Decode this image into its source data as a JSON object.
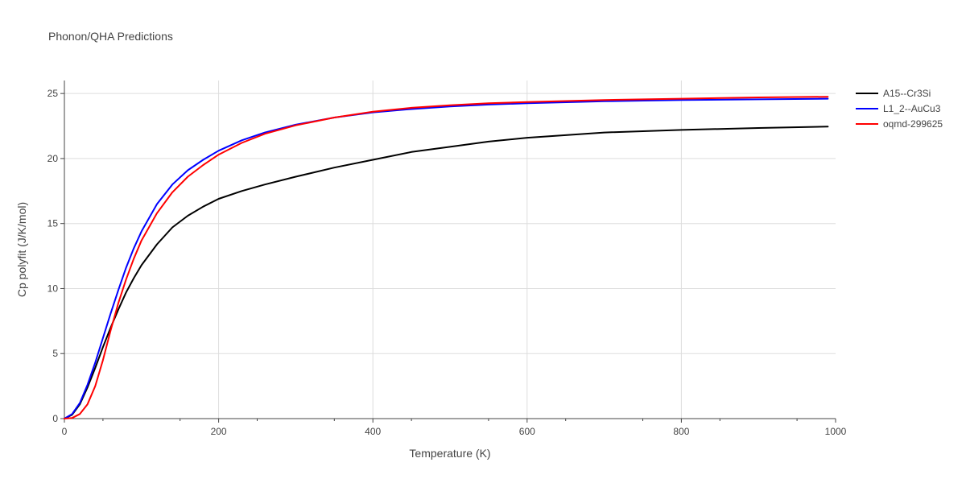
{
  "chart_data": {
    "type": "line",
    "title": "Phonon/QHA Predictions",
    "xlabel": "Temperature (K)",
    "ylabel": "Cp polyfit (J/K/mol)",
    "xlim": [
      0,
      1000
    ],
    "ylim": [
      0,
      26
    ],
    "xticks": [
      "0",
      "200",
      "400",
      "600",
      "800",
      "1000"
    ],
    "yticks": [
      "0",
      "5",
      "10",
      "15",
      "20",
      "25"
    ],
    "grid": true,
    "legend_position": "top-right",
    "series": [
      {
        "name": "A15--Cr3Si",
        "color": "#000000",
        "x": [
          0,
          10,
          20,
          30,
          40,
          50,
          60,
          70,
          80,
          90,
          100,
          120,
          140,
          160,
          180,
          200,
          230,
          260,
          300,
          350,
          400,
          450,
          500,
          550,
          600,
          700,
          800,
          900,
          990
        ],
        "y": [
          0,
          0.3,
          1.1,
          2.4,
          3.9,
          5.5,
          7.0,
          8.4,
          9.7,
          10.8,
          11.8,
          13.4,
          14.7,
          15.6,
          16.3,
          16.9,
          17.5,
          18.0,
          18.6,
          19.3,
          19.9,
          20.5,
          20.9,
          21.3,
          21.6,
          22.0,
          22.2,
          22.35,
          22.45
        ]
      },
      {
        "name": "L1_2--AuCu3",
        "color": "#0000ff",
        "x": [
          0,
          10,
          20,
          30,
          40,
          50,
          60,
          70,
          80,
          90,
          100,
          120,
          140,
          160,
          180,
          200,
          230,
          260,
          300,
          350,
          400,
          450,
          500,
          550,
          600,
          700,
          800,
          900,
          990
        ],
        "y": [
          0,
          0.35,
          1.2,
          2.6,
          4.3,
          6.2,
          8.1,
          9.9,
          11.6,
          13.1,
          14.4,
          16.5,
          18.0,
          19.1,
          19.9,
          20.6,
          21.4,
          22.0,
          22.6,
          23.15,
          23.55,
          23.8,
          24.0,
          24.15,
          24.25,
          24.4,
          24.5,
          24.55,
          24.6
        ]
      },
      {
        "name": "oqmd-299625",
        "color": "#ff0000",
        "x": [
          0,
          10,
          20,
          30,
          40,
          50,
          60,
          70,
          80,
          90,
          100,
          120,
          140,
          160,
          180,
          200,
          230,
          260,
          300,
          350,
          400,
          450,
          500,
          550,
          600,
          700,
          800,
          900,
          990
        ],
        "y": [
          0,
          0.05,
          0.35,
          1.1,
          2.5,
          4.5,
          6.8,
          8.9,
          10.7,
          12.3,
          13.7,
          15.8,
          17.4,
          18.6,
          19.5,
          20.3,
          21.2,
          21.9,
          22.55,
          23.15,
          23.6,
          23.9,
          24.1,
          24.25,
          24.35,
          24.5,
          24.6,
          24.7,
          24.75
        ]
      }
    ]
  }
}
